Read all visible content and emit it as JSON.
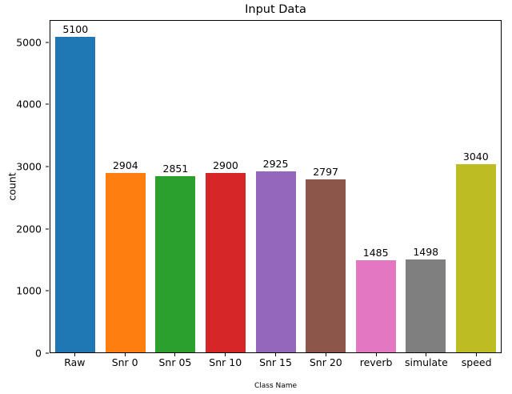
{
  "chart_data": {
    "type": "bar",
    "title": "Input Data",
    "xlabel": "Class Name",
    "ylabel": "count",
    "categories": [
      "Raw",
      "Snr 0",
      "Snr 05",
      "Snr 10",
      "Snr 15",
      "Snr 20",
      "reverb",
      "simulate",
      "speed"
    ],
    "values": [
      5100,
      2904,
      2851,
      2900,
      2925,
      2797,
      1485,
      1498,
      3040
    ],
    "bar_colors": [
      "#1f77b4",
      "#ff7f0e",
      "#2ca02c",
      "#d62728",
      "#9467bd",
      "#8c564b",
      "#e377c2",
      "#7f7f7f",
      "#bcbd22"
    ],
    "value_labels": [
      5100,
      2904,
      2851,
      2900,
      2925,
      2797,
      1485,
      1498,
      3040
    ],
    "ylim": [
      0,
      5355
    ],
    "yticks": [
      0,
      1000,
      2000,
      3000,
      4000,
      5000
    ],
    "grid": false,
    "legend": "none",
    "background_color": "#ffffff",
    "axis_color": "#000000"
  }
}
